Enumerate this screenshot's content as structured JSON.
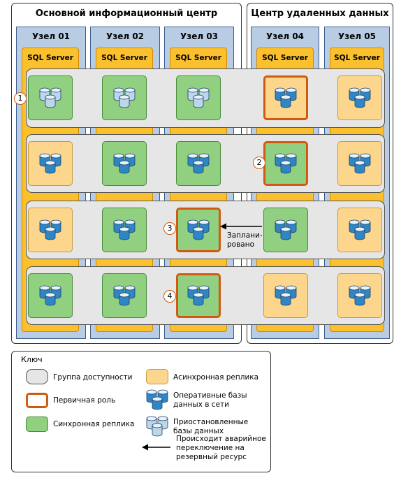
{
  "datacenters": {
    "primary_title": "Основной информационный центр",
    "remote_title": "Центр удаленных данных"
  },
  "nodes": [
    {
      "label": "Узел 01",
      "sql": "SQL Server"
    },
    {
      "label": "Узел 02",
      "sql": "SQL Server"
    },
    {
      "label": "Узел 03",
      "sql": "SQL Server"
    },
    {
      "label": "Узел 04",
      "sql": "SQL Server"
    },
    {
      "label": "Узел 05",
      "sql": "SQL Server"
    }
  ],
  "callouts": [
    "1",
    "2",
    "3",
    "4"
  ],
  "failover_note": {
    "line1": "Заплани-",
    "line2": "ровано"
  },
  "legend": {
    "title": "Ключ",
    "availability_group": "Группа доступности",
    "primary_role": "Первичная роль",
    "sync_replica": "Синхронная реплика",
    "async_replica": "Асинхронная реплика",
    "online_db_1": "Оперативные базы",
    "online_db_2": "данных в сети",
    "suspended_db_1": "Приостановленные",
    "suspended_db_2": "базы данных",
    "failover_1": "Происходит аварийное",
    "failover_2": "переключение на",
    "failover_3": "резервный ресурс"
  },
  "colors": {
    "sync": "#90d080",
    "async": "#fcd68c",
    "primary_border": "#d05a10",
    "availability_group": "#e6e6e6",
    "node": "#b8cce4",
    "sql_server": "#fbc02d",
    "db_online": "#2f86c4",
    "db_suspended": "#bcd6ea"
  },
  "rows": [
    [
      "sync-suspended",
      "sync-suspended",
      "sync-suspended",
      "primary-async-online",
      "async-online"
    ],
    [
      "async-online",
      "sync-online",
      "sync-online",
      "primary-sync-online",
      "async-online"
    ],
    [
      "async-online",
      "sync-online",
      "primary-sync-online",
      "sync-online",
      "async-online"
    ],
    [
      "sync-online",
      "sync-online",
      "primary-sync-online",
      "async-online",
      "async-online"
    ]
  ]
}
